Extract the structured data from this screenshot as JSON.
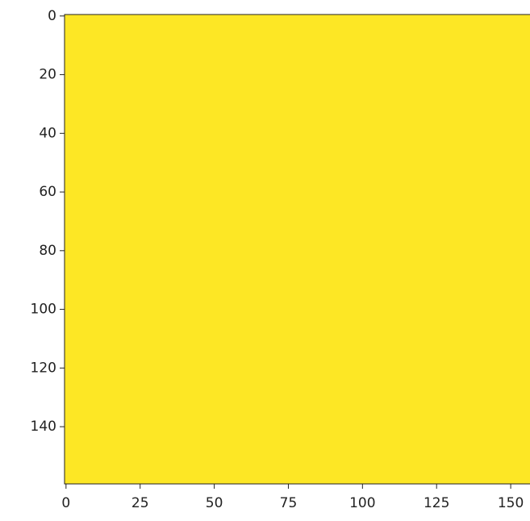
{
  "chart_data": {
    "type": "image",
    "colormap": "viridis",
    "fill_color": "#fde725",
    "xlim": [
      -0.5,
      159.5
    ],
    "ylim": [
      159.5,
      -0.5
    ],
    "xticks": [
      0,
      25,
      50,
      75,
      100,
      125,
      150
    ],
    "yticks": [
      0,
      20,
      40,
      60,
      80,
      100,
      120,
      140
    ]
  }
}
